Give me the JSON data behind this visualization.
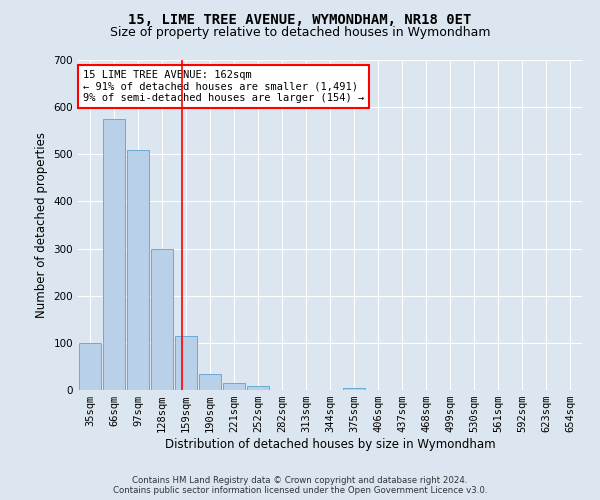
{
  "title": "15, LIME TREE AVENUE, WYMONDHAM, NR18 0ET",
  "subtitle": "Size of property relative to detached houses in Wymondham",
  "xlabel": "Distribution of detached houses by size in Wymondham",
  "ylabel": "Number of detached properties",
  "footer_line1": "Contains HM Land Registry data © Crown copyright and database right 2024.",
  "footer_line2": "Contains public sector information licensed under the Open Government Licence v3.0.",
  "categories": [
    "35sqm",
    "66sqm",
    "97sqm",
    "128sqm",
    "159sqm",
    "190sqm",
    "221sqm",
    "252sqm",
    "282sqm",
    "313sqm",
    "344sqm",
    "375sqm",
    "406sqm",
    "437sqm",
    "468sqm",
    "499sqm",
    "530sqm",
    "561sqm",
    "592sqm",
    "623sqm",
    "654sqm"
  ],
  "values": [
    100,
    575,
    510,
    300,
    115,
    35,
    15,
    8,
    0,
    0,
    0,
    5,
    0,
    0,
    0,
    0,
    0,
    0,
    0,
    0,
    0
  ],
  "bar_color": "#b8d0e8",
  "bar_edge_color": "#6aaad4",
  "vline_bin_index": 3.82,
  "annotation_text_line1": "15 LIME TREE AVENUE: 162sqm",
  "annotation_text_line2": "← 91% of detached houses are smaller (1,491)",
  "annotation_text_line3": "9% of semi-detached houses are larger (154) →",
  "annotation_box_color": "white",
  "annotation_border_color": "red",
  "vline_color": "red",
  "ylim": [
    0,
    700
  ],
  "yticks": [
    0,
    100,
    200,
    300,
    400,
    500,
    600,
    700
  ],
  "background_color": "#dce6f0",
  "plot_background_color": "#dce6f0",
  "title_fontsize": 10,
  "subtitle_fontsize": 9,
  "axis_label_fontsize": 8.5,
  "tick_fontsize": 7.5,
  "annotation_fontsize": 7.5
}
